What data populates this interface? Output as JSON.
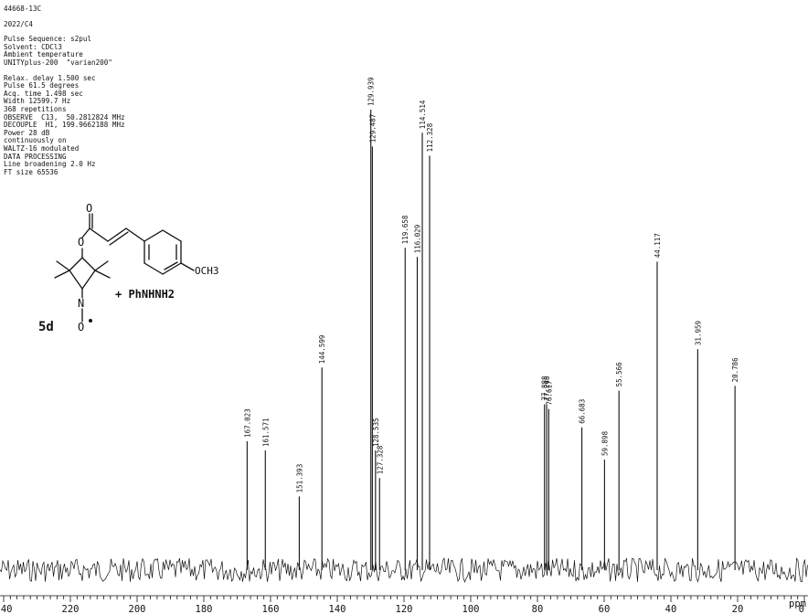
{
  "header": {
    "sample_id": "44668-13C",
    "sample_name": "2022/C4",
    "pulse_sequence": "Pulse Sequence: s2pul",
    "solvent": "Solvent: CDCl3",
    "temperature": "Ambient temperature",
    "instrument": "UNITYplus-200  \"varian200\"",
    "relax_delay": "Relax. delay 1.500 sec",
    "pulse": "Pulse 61.5 degrees",
    "acq_time": "Acq. time 1.498 sec",
    "width": "Width 12599.7 Hz",
    "repetitions": "368 repetitions",
    "observe": "OBSERVE  C13,  50.2812824 MHz",
    "decouple": "DECOUPLE  H1, 199.9662188 MHz",
    "power": "Power 28 dB",
    "continuous": "continuously on",
    "waltz": "WALTZ-16 modulated",
    "data_processing": "DATA PROCESSING",
    "line_broadening": "Line broadening 2.0 Hz",
    "ft_size": "FT size 65536"
  },
  "structure": {
    "label": "5d",
    "substituent": "OCH3",
    "reagent": "+ PhNHNH2",
    "atoms": {
      "o_carbonyl": "O",
      "o_ester": "O",
      "nitrogen": "N",
      "o_nitroxide": "O"
    }
  },
  "chart_data": {
    "type": "line",
    "title": "",
    "xlabel": "ppm",
    "ylabel": "",
    "xlim": [
      242,
      0
    ],
    "reversed_x": true,
    "grid": false,
    "ticks": [
      240,
      220,
      200,
      180,
      160,
      140,
      120,
      100,
      80,
      60,
      40,
      20,
      0
    ],
    "tick_labels": [
      "240",
      "220",
      "200",
      "180",
      "160",
      "140",
      "120",
      "100",
      "80",
      "60",
      "40",
      "20",
      "0"
    ],
    "peaks": [
      {
        "ppm": 167.023,
        "label": "167.023",
        "intensity": 0.28
      },
      {
        "ppm": 161.571,
        "label": "161.571",
        "intensity": 0.26
      },
      {
        "ppm": 151.393,
        "label": "151.393",
        "intensity": 0.16
      },
      {
        "ppm": 144.599,
        "label": "144.599",
        "intensity": 0.44
      },
      {
        "ppm": 129.939,
        "label": "129.939",
        "intensity": 1.0
      },
      {
        "ppm": 129.487,
        "label": "129.487",
        "intensity": 0.92
      },
      {
        "ppm": 128.535,
        "label": "128.535",
        "intensity": 0.26
      },
      {
        "ppm": 127.328,
        "label": "127.328",
        "intensity": 0.2
      },
      {
        "ppm": 119.658,
        "label": "119.658",
        "intensity": 0.7
      },
      {
        "ppm": 116.029,
        "label": "116.029",
        "intensity": 0.68
      },
      {
        "ppm": 114.514,
        "label": "114.514",
        "intensity": 0.95
      },
      {
        "ppm": 112.328,
        "label": "112.328",
        "intensity": 0.9
      },
      {
        "ppm": 77.888,
        "label": "77.888",
        "intensity": 0.36
      },
      {
        "ppm": 77.248,
        "label": "77.248",
        "intensity": 0.36
      },
      {
        "ppm": 76.617,
        "label": "76.617",
        "intensity": 0.35
      },
      {
        "ppm": 66.683,
        "label": "66.683",
        "intensity": 0.31
      },
      {
        "ppm": 59.898,
        "label": "59.898",
        "intensity": 0.24
      },
      {
        "ppm": 55.566,
        "label": "55.566",
        "intensity": 0.39
      },
      {
        "ppm": 44.117,
        "label": "44.117",
        "intensity": 0.67
      },
      {
        "ppm": 31.959,
        "label": "31.959",
        "intensity": 0.48
      },
      {
        "ppm": 20.786,
        "label": "20.786",
        "intensity": 0.4
      }
    ]
  }
}
